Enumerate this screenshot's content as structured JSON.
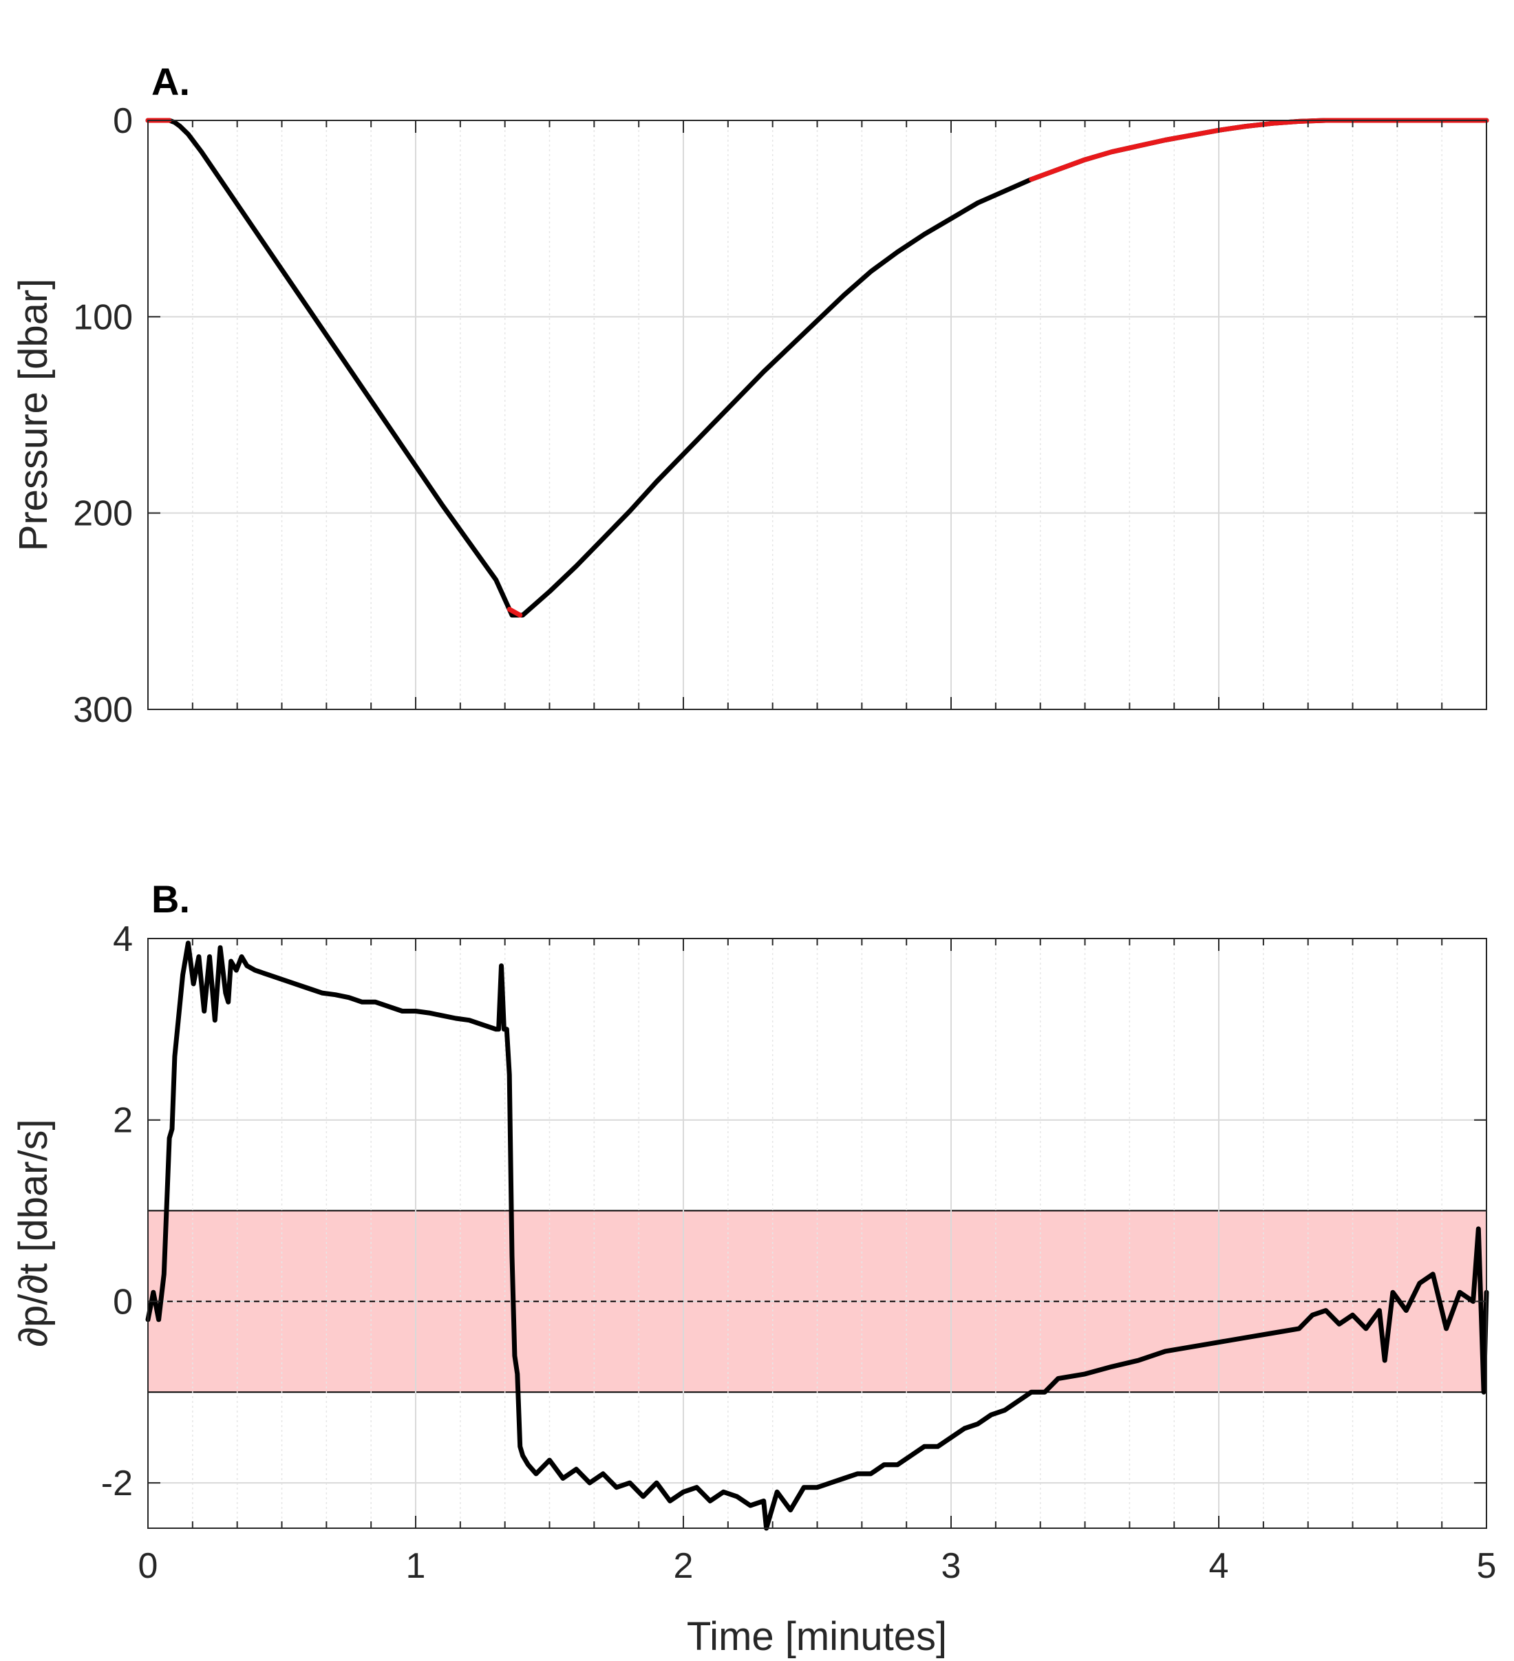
{
  "colors": {
    "trace": "#000000",
    "highlight": "#e8181a",
    "band": "#fdcccd",
    "grid_major": "#d9d9d9",
    "grid_minor": "#e6e6e6",
    "axis": "#262626"
  },
  "chart_data": [
    {
      "type": "line",
      "panel": "A.",
      "title": "",
      "xlabel": "",
      "ylabel": "Pressure [dbar]",
      "xlim": [
        0,
        5
      ],
      "ylim": [
        0,
        300
      ],
      "y_reversed": true,
      "yticks": [
        0,
        100,
        200,
        300
      ],
      "ytick_labels": [
        "0",
        "100",
        "200",
        "300"
      ],
      "xticks": [
        0,
        1,
        2,
        3,
        4,
        5
      ],
      "x_minor_step": 0.16667,
      "grid": true,
      "series": [
        {
          "x": [
            0,
            0.02,
            0.05,
            0.08,
            0.1,
            0.12,
            0.15,
            0.2,
            0.3,
            0.4,
            0.5,
            0.6,
            0.7,
            0.8,
            0.9,
            1.0,
            1.1,
            1.2,
            1.3,
            1.36,
            1.4,
            1.5,
            1.6,
            1.7,
            1.8,
            1.9,
            2.0,
            2.1,
            2.2,
            2.3,
            2.4,
            2.5,
            2.6,
            2.7,
            2.8,
            2.9,
            3.0,
            3.1,
            3.2,
            3.3,
            3.4,
            3.5,
            3.6,
            3.7,
            3.8,
            3.9,
            4.0,
            4.1,
            4.2,
            4.3,
            4.4,
            4.5,
            4.6,
            4.7,
            4.8,
            4.9,
            5.0
          ],
          "y": [
            0,
            0,
            0,
            0,
            1,
            3,
            7,
            16,
            36,
            56,
            76,
            96,
            116,
            136,
            156,
            176,
            196,
            215,
            234,
            252,
            252,
            240,
            227,
            213,
            199,
            184,
            170,
            156,
            142,
            128,
            115,
            102,
            89,
            77,
            67,
            58,
            50,
            42,
            36,
            30,
            25,
            20,
            16,
            13,
            10,
            7.5,
            5,
            3,
            1.5,
            0.5,
            0,
            0,
            0,
            0,
            0,
            0,
            0
          ],
          "highlight_ranges": [
            [
              0,
              0.08
            ],
            [
              1.35,
              1.39
            ],
            [
              3.3,
              5.0
            ]
          ]
        }
      ]
    },
    {
      "type": "line",
      "panel": "B.",
      "title": "",
      "xlabel": "Time [minutes]",
      "ylabel": "∂p/∂t [dbar/s]",
      "xlim": [
        0,
        5
      ],
      "ylim": [
        -2.5,
        4
      ],
      "yticks": [
        -2,
        0,
        2,
        4
      ],
      "ytick_labels": [
        "-2",
        "0",
        "2",
        "4"
      ],
      "xticks": [
        0,
        1,
        2,
        3,
        4,
        5
      ],
      "xtick_labels": [
        "0",
        "1",
        "2",
        "3",
        "4",
        "5"
      ],
      "x_minor_step": 0.16667,
      "grid": true,
      "band": [
        -1,
        1
      ],
      "reference_line": 0,
      "series": [
        {
          "x": [
            0,
            0.02,
            0.04,
            0.06,
            0.08,
            0.09,
            0.1,
            0.11,
            0.13,
            0.15,
            0.17,
            0.19,
            0.21,
            0.23,
            0.25,
            0.27,
            0.29,
            0.3,
            0.31,
            0.33,
            0.35,
            0.37,
            0.4,
            0.45,
            0.5,
            0.55,
            0.6,
            0.65,
            0.7,
            0.75,
            0.8,
            0.85,
            0.9,
            0.95,
            1.0,
            1.05,
            1.1,
            1.15,
            1.2,
            1.25,
            1.3,
            1.31,
            1.32,
            1.33,
            1.34,
            1.35,
            1.36,
            1.37,
            1.38,
            1.39,
            1.4,
            1.42,
            1.45,
            1.5,
            1.55,
            1.6,
            1.65,
            1.7,
            1.75,
            1.8,
            1.85,
            1.9,
            1.95,
            2.0,
            2.05,
            2.1,
            2.15,
            2.2,
            2.25,
            2.3,
            2.31,
            2.35,
            2.4,
            2.45,
            2.5,
            2.55,
            2.6,
            2.65,
            2.7,
            2.75,
            2.8,
            2.85,
            2.9,
            2.95,
            3.0,
            3.05,
            3.1,
            3.15,
            3.2,
            3.25,
            3.3,
            3.35,
            3.4,
            3.5,
            3.6,
            3.7,
            3.8,
            3.9,
            4.0,
            4.1,
            4.2,
            4.3,
            4.35,
            4.4,
            4.45,
            4.5,
            4.55,
            4.6,
            4.62,
            4.65,
            4.7,
            4.75,
            4.8,
            4.85,
            4.9,
            4.95,
            4.97,
            4.99,
            5.0
          ],
          "y": [
            -0.2,
            0.1,
            -0.2,
            0.3,
            1.8,
            1.9,
            2.7,
            3.0,
            3.6,
            3.95,
            3.5,
            3.8,
            3.2,
            3.8,
            3.1,
            3.9,
            3.4,
            3.3,
            3.75,
            3.65,
            3.8,
            3.7,
            3.65,
            3.6,
            3.55,
            3.5,
            3.45,
            3.4,
            3.38,
            3.35,
            3.3,
            3.3,
            3.25,
            3.2,
            3.2,
            3.18,
            3.15,
            3.12,
            3.1,
            3.05,
            3.0,
            3.0,
            3.7,
            3.0,
            3.0,
            2.5,
            0.5,
            -0.6,
            -0.8,
            -1.6,
            -1.7,
            -1.8,
            -1.9,
            -1.75,
            -1.95,
            -1.85,
            -2.0,
            -1.9,
            -2.05,
            -2.0,
            -2.15,
            -2.0,
            -2.2,
            -2.1,
            -2.05,
            -2.2,
            -2.1,
            -2.15,
            -2.25,
            -2.2,
            -2.5,
            -2.1,
            -2.3,
            -2.05,
            -2.05,
            -2.0,
            -1.95,
            -1.9,
            -1.9,
            -1.8,
            -1.8,
            -1.7,
            -1.6,
            -1.6,
            -1.5,
            -1.4,
            -1.35,
            -1.25,
            -1.2,
            -1.1,
            -1.0,
            -1.0,
            -0.85,
            -0.8,
            -0.72,
            -0.65,
            -0.55,
            -0.5,
            -0.45,
            -0.4,
            -0.35,
            -0.3,
            -0.15,
            -0.1,
            -0.25,
            -0.15,
            -0.3,
            -0.1,
            -0.65,
            0.1,
            -0.1,
            0.2,
            0.3,
            -0.3,
            0.1,
            0.0,
            0.8,
            -1.0,
            0.1
          ]
        }
      ]
    }
  ]
}
